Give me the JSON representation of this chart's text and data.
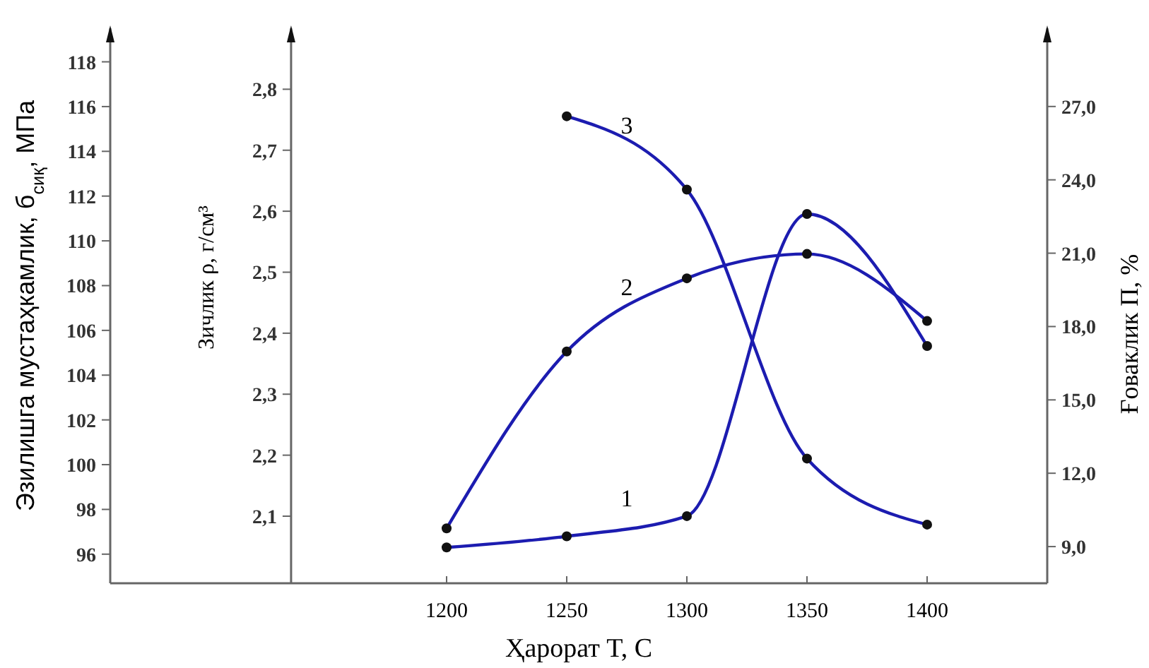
{
  "chart_data": {
    "type": "line",
    "xlabel": "Ҳарорат T, C",
    "ylabel": "Эзилишга мустаҳкамлик, б$_{сиқ}$, МПа",
    "y2label": "Зичлик ρ, г/см³",
    "y3label": "Ғоваклик П, %",
    "x": [
      1200,
      1250,
      1300,
      1350,
      1400
    ],
    "xlim": [
      1060,
      1450
    ],
    "xticks": [
      1200,
      1250,
      1300,
      1350,
      1400
    ],
    "ylim": [
      94.7,
      119.5
    ],
    "yticks": [
      96,
      98,
      100,
      102,
      104,
      106,
      108,
      110,
      112,
      114,
      116,
      118
    ],
    "y2lim": [
      1.99,
      2.9
    ],
    "y2ticks": [
      {
        "value": 2.1,
        "label": "2,1"
      },
      {
        "value": 2.2,
        "label": "2,2"
      },
      {
        "value": 2.3,
        "label": "2,3"
      },
      {
        "value": 2.4,
        "label": "2,4"
      },
      {
        "value": 2.5,
        "label": "2,5"
      },
      {
        "value": 2.6,
        "label": "2,6"
      },
      {
        "value": 2.7,
        "label": "2,7"
      },
      {
        "value": 2.8,
        "label": "2,8"
      }
    ],
    "y3lim": [
      7.5,
      30.2
    ],
    "y3ticks": [
      {
        "value": 9,
        "label": "9,0"
      },
      {
        "value": 12,
        "label": "12,0"
      },
      {
        "value": 15,
        "label": "15,0"
      },
      {
        "value": 18,
        "label": "18,0"
      },
      {
        "value": 21,
        "label": "21,0"
      },
      {
        "value": 24,
        "label": "24,0"
      },
      {
        "value": 27,
        "label": "27,0"
      }
    ],
    "series": [
      {
        "name": "1",
        "color": "#1c1cb0",
        "axis": "y",
        "values": [
          96.3,
          96.8,
          97.7,
          111.2,
          105.3
        ]
      },
      {
        "name": "2",
        "color": "#1c1cb0",
        "axis": "y2",
        "values": [
          2.08,
          2.37,
          2.49,
          2.53,
          2.42
        ]
      },
      {
        "name": "3",
        "color": "#1c1cb0",
        "axis": "y3",
        "values": [
          null,
          26.6,
          23.6,
          12.6,
          9.9
        ]
      }
    ],
    "marker": "circle",
    "line_style": "solid",
    "grid": false
  }
}
